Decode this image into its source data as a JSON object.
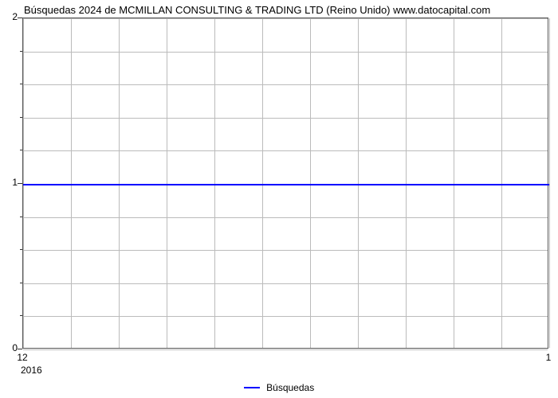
{
  "chart": {
    "type": "line",
    "title": "Búsquedas 2024 de MCMILLAN CONSULTING & TRADING LTD (Reino Unido) www.datocapital.com",
    "title_fontsize": 13,
    "background_color": "#ffffff",
    "border_color": "#555555",
    "grid_color": "#bbbbbb",
    "tick_color": "#333333",
    "text_color": "#000000",
    "line_color": "#0000ff",
    "line_width": 2,
    "label_fontsize": 12,
    "y": {
      "min": 0,
      "max": 2,
      "major_ticks": [
        0,
        1,
        2
      ],
      "minor_ticks": [
        0.2,
        0.4,
        0.6,
        0.8,
        1.2,
        1.4,
        1.6,
        1.8
      ]
    },
    "x": {
      "min": 1,
      "max": 12,
      "grid_positions": [
        1,
        2,
        3,
        4,
        5,
        6,
        7,
        8,
        9,
        10,
        11,
        12
      ],
      "tick_labels": [
        {
          "pos": 1,
          "label": "12"
        },
        {
          "pos": 12,
          "label": "1"
        }
      ],
      "sublabel": "2016"
    },
    "series": [
      {
        "name": "Búsquedas",
        "x": [
          1,
          12
        ],
        "y": [
          1,
          1
        ]
      }
    ],
    "legend": {
      "label": "Búsquedas",
      "position": "bottom-center"
    }
  }
}
